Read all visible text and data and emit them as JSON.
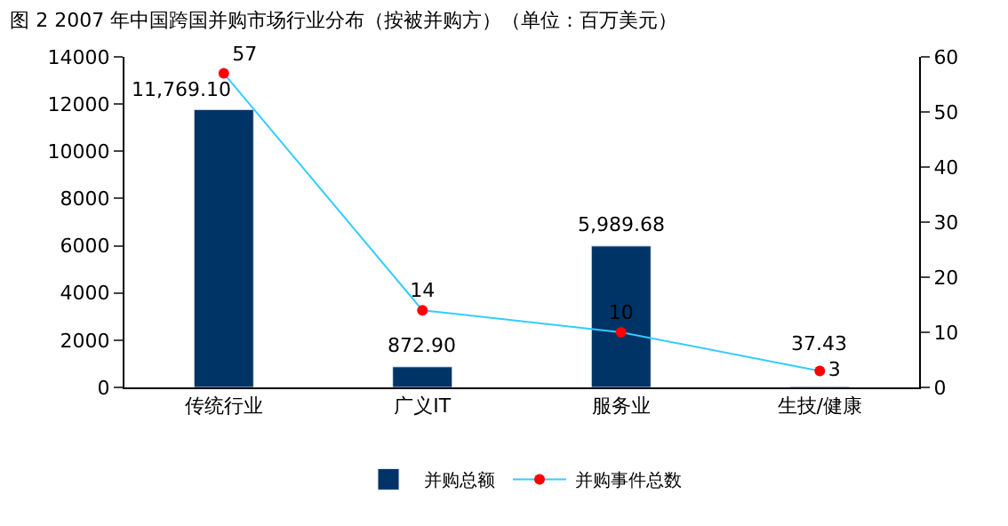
{
  "chart_data": {
    "type": "bar",
    "title": "图 2 2007 年中国跨国并购市场行业分布（按被并购方）（单位：百万美元）",
    "categories": [
      "传统行业",
      "广义IT",
      "服务业",
      "生技/健康"
    ],
    "series": [
      {
        "name": "并购总额",
        "color": "#003366",
        "values": [
          11769.1,
          872.9,
          5989.68,
          37.43
        ],
        "value_labels": [
          "11,769.10",
          "872.90",
          "5,989.68",
          "37.43"
        ]
      },
      {
        "name": "并购事件总数",
        "type": "line",
        "axis": "y2",
        "color": "#33ccff",
        "colors": [
          "#ff0000",
          "#ff0000",
          "#ff0000",
          "#ff0000"
        ],
        "marker": "circle",
        "values": [
          57,
          14,
          10,
          3
        ],
        "value_labels": [
          "57",
          "14",
          "10",
          "3"
        ]
      }
    ],
    "ylim": [
      0,
      14000
    ],
    "yticks": [
      0,
      2000,
      4000,
      6000,
      8000,
      10000,
      12000,
      14000
    ],
    "y2lim": [
      0,
      60
    ],
    "y2ticks": [
      0,
      10,
      20,
      30,
      40,
      50,
      60
    ],
    "legend": "bottom"
  }
}
